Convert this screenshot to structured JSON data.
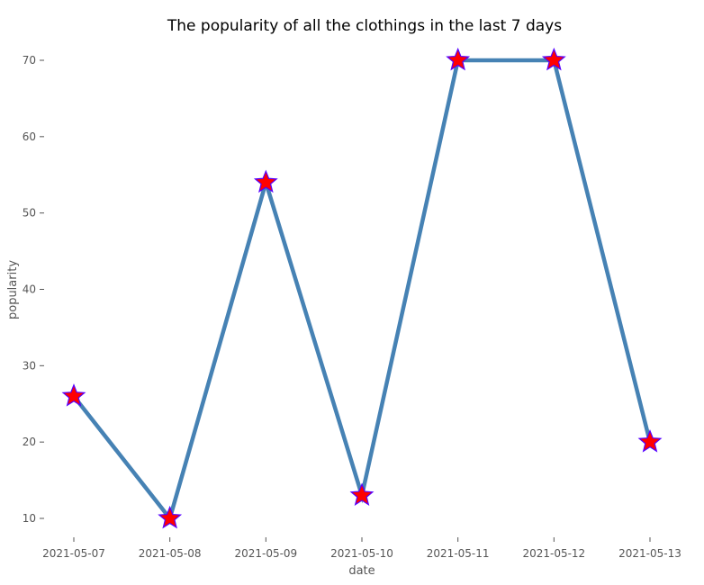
{
  "chart_data": {
    "type": "line",
    "title": "The popularity of all the clothings in the last 7 days",
    "xlabel": "date",
    "ylabel": "popularity",
    "categories": [
      "2021-05-07",
      "2021-05-08",
      "2021-05-09",
      "2021-05-10",
      "2021-05-11",
      "2021-05-12",
      "2021-05-13"
    ],
    "series": [
      {
        "values": [
          26,
          10,
          54,
          13,
          70,
          70,
          20
        ]
      }
    ],
    "yticks": [
      10,
      20,
      30,
      40,
      50,
      60,
      70
    ],
    "ylim": [
      7,
      73
    ],
    "grid": false,
    "legend": "none",
    "line_color": "#4682b4",
    "marker": "star",
    "marker_face_color": "#ff0000",
    "marker_edge_color": "#5500ff",
    "tick_color": "#555555",
    "background": "#ffffff"
  }
}
